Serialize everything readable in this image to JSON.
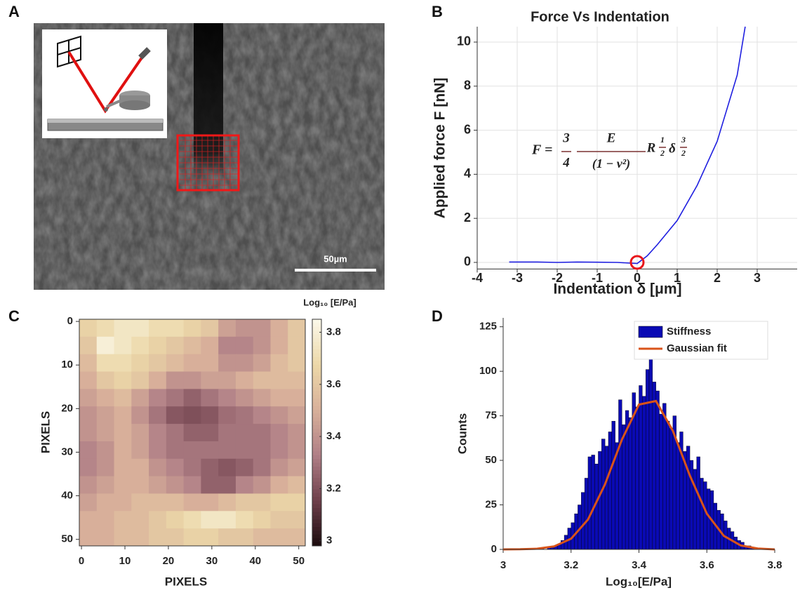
{
  "panels": [
    "A",
    "B",
    "C",
    "D"
  ],
  "image": {
    "scale_bar": "50µm"
  },
  "chart_data": [
    {
      "type": "line",
      "title": "Force Vs Indentation",
      "xlabel": "Indentation δ [μm]",
      "ylabel": "Applied force F [nN]",
      "xlim": [
        -4,
        4
      ],
      "ylim": [
        -0.3,
        10.7
      ],
      "xticks": [
        -4,
        -3,
        -2,
        -1,
        0,
        1,
        2,
        3
      ],
      "yticks": [
        0,
        2,
        4,
        6,
        8,
        10
      ],
      "grid": true,
      "series": [
        {
          "color": "#1f1fe0",
          "x": [
            -3.2,
            -2.5,
            -2,
            -1.5,
            -1,
            -0.5,
            0,
            0.25,
            0.5,
            1,
            1.5,
            2,
            2.5,
            2.7
          ],
          "values": [
            0.02,
            0.02,
            0,
            0.02,
            0.01,
            0,
            -0.05,
            0.3,
            0.8,
            1.9,
            3.5,
            5.5,
            8.5,
            10.7
          ]
        }
      ],
      "marker": {
        "x": 0,
        "y": 0,
        "color": "#e8161b"
      },
      "formula": [
        "F =",
        "3",
        "4",
        "E",
        "(1 − ν²)",
        "R",
        "1",
        "2",
        "δ",
        "3",
        "2"
      ]
    },
    {
      "type": "heatmap",
      "xlabel": "PIXELS",
      "ylabel": "PIXELS",
      "xlim": [
        -0.5,
        51.5
      ],
      "ylim": [
        51.5,
        -0.5
      ],
      "xticks": [
        0,
        10,
        20,
        30,
        40,
        50
      ],
      "yticks": [
        0,
        10,
        20,
        30,
        40,
        50
      ],
      "x": [
        1.5,
        5.5,
        9.5,
        13.5,
        17.5,
        21.5,
        25.5,
        29.5,
        33.5,
        37.5,
        41.5,
        45.5,
        49.5
      ],
      "y": [
        1.5,
        5.5,
        9.5,
        13.5,
        17.5,
        21.5,
        25.5,
        29.5,
        33.5,
        37.5,
        41.5,
        45.5,
        49.5
      ],
      "values": [
        [
          3.65,
          3.7,
          3.75,
          3.75,
          3.7,
          3.7,
          3.65,
          3.6,
          3.45,
          3.4,
          3.4,
          3.5,
          3.6
        ],
        [
          3.6,
          3.8,
          3.75,
          3.7,
          3.65,
          3.6,
          3.55,
          3.5,
          3.35,
          3.35,
          3.4,
          3.5,
          3.6
        ],
        [
          3.55,
          3.7,
          3.7,
          3.65,
          3.6,
          3.55,
          3.5,
          3.5,
          3.4,
          3.4,
          3.45,
          3.55,
          3.6
        ],
        [
          3.5,
          3.6,
          3.65,
          3.6,
          3.5,
          3.4,
          3.4,
          3.45,
          3.45,
          3.5,
          3.55,
          3.55,
          3.55
        ],
        [
          3.45,
          3.5,
          3.55,
          3.45,
          3.35,
          3.3,
          3.25,
          3.3,
          3.35,
          3.4,
          3.45,
          3.5,
          3.5
        ],
        [
          3.4,
          3.45,
          3.5,
          3.4,
          3.3,
          3.22,
          3.2,
          3.22,
          3.28,
          3.3,
          3.35,
          3.4,
          3.45
        ],
        [
          3.4,
          3.45,
          3.5,
          3.45,
          3.35,
          3.3,
          3.25,
          3.25,
          3.3,
          3.3,
          3.3,
          3.35,
          3.4
        ],
        [
          3.35,
          3.4,
          3.5,
          3.45,
          3.35,
          3.3,
          3.3,
          3.3,
          3.3,
          3.3,
          3.3,
          3.35,
          3.4
        ],
        [
          3.35,
          3.4,
          3.5,
          3.5,
          3.4,
          3.35,
          3.3,
          3.25,
          3.22,
          3.25,
          3.3,
          3.4,
          3.45
        ],
        [
          3.4,
          3.45,
          3.5,
          3.5,
          3.45,
          3.4,
          3.35,
          3.25,
          3.25,
          3.35,
          3.4,
          3.5,
          3.55
        ],
        [
          3.45,
          3.5,
          3.5,
          3.55,
          3.55,
          3.55,
          3.5,
          3.5,
          3.55,
          3.6,
          3.6,
          3.65,
          3.65
        ],
        [
          3.5,
          3.5,
          3.55,
          3.55,
          3.6,
          3.65,
          3.7,
          3.75,
          3.75,
          3.7,
          3.65,
          3.6,
          3.6
        ],
        [
          3.5,
          3.5,
          3.55,
          3.55,
          3.6,
          3.6,
          3.65,
          3.65,
          3.6,
          3.6,
          3.55,
          3.55,
          3.55
        ]
      ],
      "colormap": [
        "#1c0c0e",
        "#6e3f4a",
        "#b07f86",
        "#d8b09a",
        "#ecd8a8",
        "#fbf8ea"
      ],
      "colorbar": {
        "label": "Log₁₀ [E/Pa]",
        "lim": [
          2.98,
          3.85
        ],
        "ticks": [
          3,
          3.2,
          3.4,
          3.6,
          3.8
        ]
      }
    },
    {
      "type": "histogram",
      "xlabel": "Log₁₀[E/Pa]",
      "ylabel": "Counts",
      "xlim": [
        3,
        3.8
      ],
      "ylim": [
        0,
        130
      ],
      "xticks": [
        3,
        3.2,
        3.4,
        3.6,
        3.8
      ],
      "yticks": [
        0,
        25,
        50,
        75,
        100,
        125
      ],
      "bins": [
        3.1,
        3.11,
        3.12,
        3.13,
        3.14,
        3.15,
        3.16,
        3.17,
        3.18,
        3.19,
        3.2,
        3.21,
        3.22,
        3.23,
        3.24,
        3.25,
        3.26,
        3.27,
        3.28,
        3.29,
        3.3,
        3.31,
        3.32,
        3.33,
        3.34,
        3.35,
        3.36,
        3.37,
        3.38,
        3.39,
        3.4,
        3.41,
        3.42,
        3.43,
        3.44,
        3.45,
        3.46,
        3.47,
        3.48,
        3.49,
        3.5,
        3.51,
        3.52,
        3.53,
        3.54,
        3.55,
        3.56,
        3.57,
        3.58,
        3.59,
        3.6,
        3.61,
        3.62,
        3.63,
        3.64,
        3.65,
        3.66,
        3.67,
        3.68,
        3.69,
        3.7,
        3.71,
        3.72,
        3.73,
        3.74,
        3.75
      ],
      "series": [
        {
          "name": "Stiffness",
          "color": "#0a0ab4",
          "values": [
            0,
            1,
            0,
            1,
            1,
            2,
            3,
            5,
            8,
            12,
            15,
            20,
            25,
            32,
            40,
            52,
            53,
            48,
            55,
            62,
            58,
            66,
            72,
            60,
            84,
            70,
            78,
            74,
            88,
            80,
            92,
            86,
            101,
            107,
            94,
            89,
            76,
            82,
            72,
            68,
            75,
            60,
            66,
            55,
            58,
            50,
            45,
            52,
            40,
            38,
            34,
            33,
            26,
            22,
            20,
            16,
            12,
            10,
            7,
            5,
            4,
            2,
            2,
            1,
            0
          ]
        },
        {
          "name": "Gaussian fit",
          "type": "line",
          "color": "#d95319",
          "x": [
            3.0,
            3.05,
            3.1,
            3.15,
            3.2,
            3.25,
            3.3,
            3.35,
            3.4,
            3.45,
            3.5,
            3.55,
            3.6,
            3.65,
            3.7,
            3.75,
            3.8
          ],
          "values": [
            0,
            0.06,
            0.4,
            1.7,
            6.0,
            16.8,
            36.5,
            61.7,
            81.3,
            83.3,
            66.5,
            41.4,
            20,
            7.6,
            2.2,
            0.5,
            0
          ]
        }
      ],
      "legend": "upper right"
    }
  ]
}
